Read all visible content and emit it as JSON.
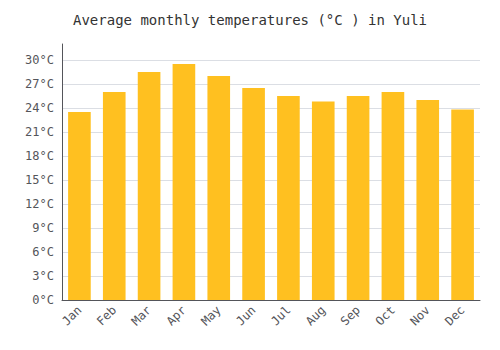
{
  "chart_data": {
    "type": "bar",
    "title": "Average monthly temperatures (°C ) in Yuli",
    "categories": [
      "Jan",
      "Feb",
      "Mar",
      "Apr",
      "May",
      "Jun",
      "Jul",
      "Aug",
      "Sep",
      "Oct",
      "Nov",
      "Dec"
    ],
    "values": [
      23.5,
      26.0,
      28.5,
      29.5,
      28.0,
      26.5,
      25.5,
      24.8,
      25.5,
      26.0,
      25.0,
      23.8
    ],
    "color": "#FFC020",
    "ylim": [
      0,
      32
    ],
    "yticks": [
      {
        "value": 0,
        "label": "0°C"
      },
      {
        "value": 3,
        "label": "3°C"
      },
      {
        "value": 6,
        "label": "6°C"
      },
      {
        "value": 9,
        "label": "9°C"
      },
      {
        "value": 12,
        "label": "12°C"
      },
      {
        "value": 15,
        "label": "15°C"
      },
      {
        "value": 18,
        "label": "18°C"
      },
      {
        "value": 21,
        "label": "21°C"
      },
      {
        "value": 24,
        "label": "24°C"
      },
      {
        "value": 27,
        "label": "27°C"
      },
      {
        "value": 30,
        "label": "30°C"
      }
    ],
    "grid": true
  }
}
